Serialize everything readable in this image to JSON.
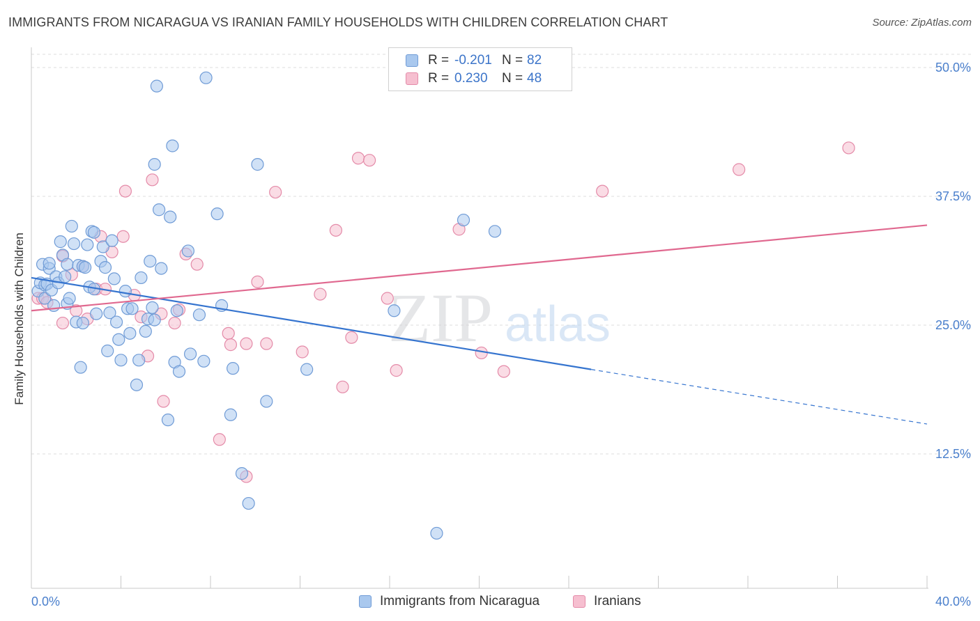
{
  "chart_data": {
    "type": "scatter",
    "title": "IMMIGRANTS FROM NICARAGUA VS IRANIAN FAMILY HOUSEHOLDS WITH CHILDREN CORRELATION CHART",
    "source": "Source: ZipAtlas.com",
    "xlabel": "",
    "ylabel": "Family Households with Children",
    "xlim": [
      0,
      40
    ],
    "ylim": [
      0,
      52
    ],
    "x_tick_labels": {
      "min": "0.0%",
      "max": "40.0%"
    },
    "y_ticks": [
      {
        "value": 12.5,
        "label": "12.5%"
      },
      {
        "value": 25.0,
        "label": "25.0%"
      },
      {
        "value": 37.5,
        "label": "37.5%"
      },
      {
        "value": 50.0,
        "label": "50.0%"
      }
    ],
    "watermark": {
      "zip": "ZIP",
      "atlas": "atlas"
    },
    "legend": {
      "r_label": "R =",
      "n_label": "N =",
      "entries": [
        {
          "name": "Immigrants from Nicaragua",
          "r": "-0.201",
          "n": "82"
        },
        {
          "name": "Iranians",
          "r": "0.230",
          "n": "48"
        }
      ]
    },
    "colors": {
      "blue_fill": "#a9c8ee",
      "blue_stroke": "#6f9bd6",
      "blue_line": "#3574cf",
      "pink_fill": "#f6bfd0",
      "pink_stroke": "#e48aa8",
      "pink_line": "#e0688f",
      "tick_label": "#4a7fcc",
      "grid": "#dddddd"
    },
    "series": [
      {
        "name": "Immigrants from Nicaragua",
        "trend": {
          "x0": 0,
          "y0": 29.6,
          "x1": 25,
          "y1": 20.7,
          "dash_to_x": 40,
          "dash_to_y": 15.4
        },
        "points": [
          [
            0.3,
            28.3
          ],
          [
            0.4,
            29.1
          ],
          [
            0.5,
            30.9
          ],
          [
            0.6,
            28.9
          ],
          [
            0.6,
            27.6
          ],
          [
            0.7,
            29.0
          ],
          [
            0.8,
            30.5
          ],
          [
            0.8,
            31.0
          ],
          [
            0.9,
            28.4
          ],
          [
            1.0,
            26.9
          ],
          [
            1.1,
            29.7
          ],
          [
            1.2,
            29.1
          ],
          [
            1.3,
            33.1
          ],
          [
            1.4,
            31.8
          ],
          [
            1.5,
            29.7
          ],
          [
            1.6,
            30.9
          ],
          [
            1.6,
            27.1
          ],
          [
            1.7,
            27.6
          ],
          [
            1.8,
            34.6
          ],
          [
            1.9,
            32.9
          ],
          [
            2.0,
            25.3
          ],
          [
            2.1,
            30.8
          ],
          [
            2.2,
            20.9
          ],
          [
            2.3,
            30.7
          ],
          [
            2.3,
            25.2
          ],
          [
            2.4,
            30.6
          ],
          [
            2.5,
            32.8
          ],
          [
            2.6,
            28.7
          ],
          [
            2.7,
            34.1
          ],
          [
            2.8,
            34.0
          ],
          [
            2.8,
            28.5
          ],
          [
            2.9,
            26.1
          ],
          [
            3.1,
            31.2
          ],
          [
            3.2,
            32.6
          ],
          [
            3.3,
            30.6
          ],
          [
            3.4,
            22.5
          ],
          [
            3.5,
            26.2
          ],
          [
            3.6,
            33.2
          ],
          [
            3.7,
            29.5
          ],
          [
            3.8,
            25.3
          ],
          [
            3.9,
            23.6
          ],
          [
            4.0,
            21.6
          ],
          [
            4.2,
            28.3
          ],
          [
            4.3,
            26.6
          ],
          [
            4.4,
            24.2
          ],
          [
            4.5,
            26.6
          ],
          [
            4.7,
            19.2
          ],
          [
            4.8,
            21.6
          ],
          [
            4.9,
            29.6
          ],
          [
            5.1,
            24.4
          ],
          [
            5.2,
            25.6
          ],
          [
            5.3,
            31.2
          ],
          [
            5.4,
            26.7
          ],
          [
            5.5,
            25.5
          ],
          [
            5.5,
            40.6
          ],
          [
            5.6,
            48.2
          ],
          [
            5.7,
            36.2
          ],
          [
            5.8,
            30.5
          ],
          [
            6.1,
            15.8
          ],
          [
            6.2,
            35.5
          ],
          [
            6.3,
            42.4
          ],
          [
            6.4,
            21.4
          ],
          [
            6.5,
            26.4
          ],
          [
            6.6,
            20.5
          ],
          [
            7.0,
            32.2
          ],
          [
            7.1,
            22.2
          ],
          [
            7.5,
            26.0
          ],
          [
            7.7,
            21.5
          ],
          [
            7.8,
            49.0
          ],
          [
            8.3,
            35.8
          ],
          [
            8.5,
            26.9
          ],
          [
            8.9,
            16.3
          ],
          [
            9.0,
            20.8
          ],
          [
            9.4,
            10.6
          ],
          [
            9.7,
            7.7
          ],
          [
            10.1,
            40.6
          ],
          [
            10.5,
            17.6
          ],
          [
            12.3,
            20.7
          ],
          [
            16.2,
            26.4
          ],
          [
            18.1,
            4.8
          ],
          [
            19.3,
            35.2
          ],
          [
            20.7,
            34.1
          ]
        ]
      },
      {
        "name": "Iranians",
        "trend": {
          "x0": 0,
          "y0": 26.4,
          "x1": 40,
          "y1": 34.7
        },
        "points": [
          [
            0.3,
            27.6
          ],
          [
            0.5,
            27.6
          ],
          [
            0.7,
            27.2
          ],
          [
            1.4,
            31.7
          ],
          [
            1.4,
            25.2
          ],
          [
            1.8,
            29.9
          ],
          [
            2.0,
            26.4
          ],
          [
            2.3,
            30.7
          ],
          [
            2.5,
            25.6
          ],
          [
            2.9,
            28.5
          ],
          [
            3.1,
            33.6
          ],
          [
            3.3,
            28.5
          ],
          [
            3.6,
            32.1
          ],
          [
            4.1,
            33.6
          ],
          [
            4.2,
            38.0
          ],
          [
            4.6,
            27.9
          ],
          [
            4.9,
            25.8
          ],
          [
            5.2,
            22.0
          ],
          [
            5.4,
            39.1
          ],
          [
            5.8,
            26.1
          ],
          [
            5.9,
            17.6
          ],
          [
            6.4,
            25.2
          ],
          [
            6.6,
            26.5
          ],
          [
            6.9,
            31.9
          ],
          [
            7.4,
            30.9
          ],
          [
            8.4,
            13.9
          ],
          [
            8.8,
            24.2
          ],
          [
            8.9,
            23.1
          ],
          [
            9.6,
            10.3
          ],
          [
            9.6,
            23.2
          ],
          [
            10.1,
            29.2
          ],
          [
            10.5,
            23.2
          ],
          [
            10.9,
            37.9
          ],
          [
            12.1,
            22.4
          ],
          [
            12.9,
            28.0
          ],
          [
            13.6,
            34.2
          ],
          [
            13.9,
            19.0
          ],
          [
            14.3,
            23.8
          ],
          [
            14.6,
            41.2
          ],
          [
            15.1,
            41.0
          ],
          [
            15.9,
            27.6
          ],
          [
            16.3,
            20.6
          ],
          [
            19.1,
            34.3
          ],
          [
            20.1,
            22.3
          ],
          [
            21.1,
            20.5
          ],
          [
            25.5,
            38.0
          ],
          [
            31.6,
            40.1
          ],
          [
            36.5,
            42.2
          ]
        ]
      }
    ]
  }
}
